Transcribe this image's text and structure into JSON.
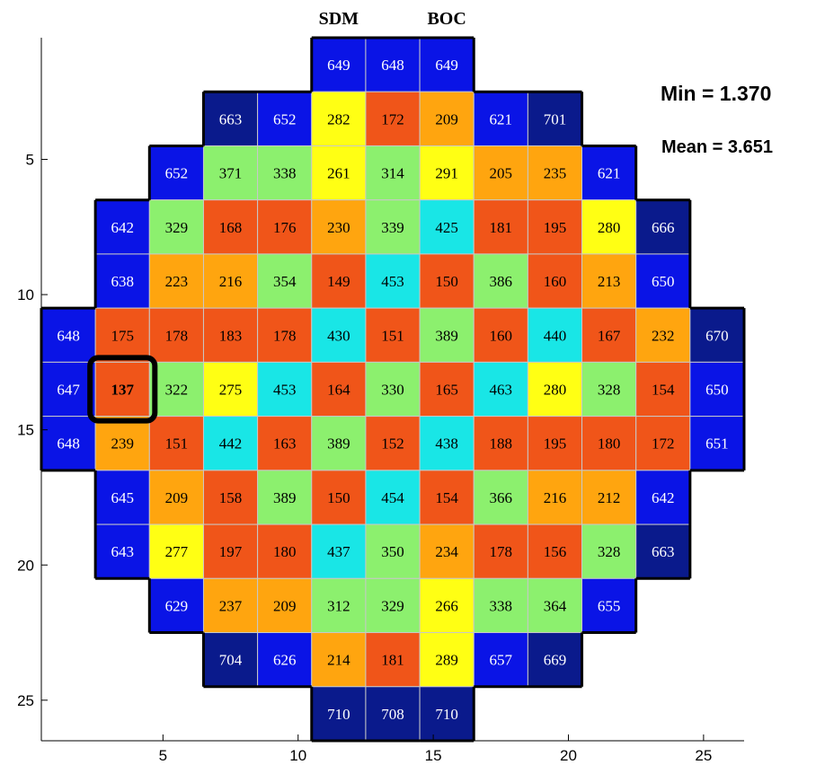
{
  "chart_data": {
    "type": "heatmap",
    "title": "",
    "header_labels": [
      {
        "text": "SDM",
        "col": 11.5
      },
      {
        "text": "BOC",
        "col": 15.5
      }
    ],
    "annotations": {
      "min": "Min = 1.370",
      "mean": "Mean = 3.651"
    },
    "highlight": {
      "row": 6,
      "col": 1
    },
    "xlim": [
      0.5,
      26.5
    ],
    "ylim": [
      0.5,
      26.5
    ],
    "x_ticks": [
      "5",
      "10",
      "15",
      "20",
      "25"
    ],
    "y_ticks": [
      "5",
      "10",
      "15",
      "20",
      "25"
    ],
    "rows": [
      {
        "start_col": 5,
        "values": [
          649,
          648,
          649
        ]
      },
      {
        "start_col": 3,
        "values": [
          663,
          652,
          282,
          172,
          209,
          621,
          701
        ]
      },
      {
        "start_col": 2,
        "values": [
          652,
          371,
          338,
          261,
          314,
          291,
          205,
          235,
          621
        ]
      },
      {
        "start_col": 1,
        "values": [
          642,
          329,
          168,
          176,
          230,
          339,
          425,
          181,
          195,
          280,
          666
        ]
      },
      {
        "start_col": 1,
        "values": [
          638,
          223,
          216,
          354,
          149,
          453,
          150,
          386,
          160,
          213,
          650
        ]
      },
      {
        "start_col": 0,
        "values": [
          648,
          175,
          178,
          183,
          178,
          430,
          151,
          389,
          160,
          440,
          167,
          232,
          670
        ]
      },
      {
        "start_col": 0,
        "values": [
          647,
          137,
          322,
          275,
          453,
          164,
          330,
          165,
          463,
          280,
          328,
          154,
          650
        ]
      },
      {
        "start_col": 0,
        "values": [
          648,
          239,
          151,
          442,
          163,
          389,
          152,
          438,
          188,
          195,
          180,
          172,
          651
        ]
      },
      {
        "start_col": 1,
        "values": [
          645,
          209,
          158,
          389,
          150,
          454,
          154,
          366,
          216,
          212,
          642
        ]
      },
      {
        "start_col": 1,
        "values": [
          643,
          277,
          197,
          180,
          437,
          350,
          234,
          178,
          156,
          328,
          663
        ]
      },
      {
        "start_col": 2,
        "values": [
          629,
          237,
          209,
          312,
          329,
          266,
          338,
          364,
          655
        ]
      },
      {
        "start_col": 3,
        "values": [
          704,
          626,
          214,
          181,
          289,
          657,
          669
        ]
      },
      {
        "start_col": 5,
        "values": [
          710,
          708,
          710
        ]
      }
    ],
    "color_bands": [
      {
        "min": 660,
        "color": "#0a1a8c",
        "text": "#ffffff"
      },
      {
        "min": 600,
        "color": "#0a14e6",
        "text": "#ffffff"
      },
      {
        "min": 420,
        "color": "#19e6e6",
        "text": "#000000"
      },
      {
        "min": 300,
        "color": "#8cf06e",
        "text": "#000000"
      },
      {
        "min": 250,
        "color": "#ffff14",
        "text": "#000000"
      },
      {
        "min": 200,
        "color": "#ffa50f",
        "text": "#000000"
      },
      {
        "min": 0,
        "color": "#f05519",
        "text": "#000000"
      }
    ]
  }
}
